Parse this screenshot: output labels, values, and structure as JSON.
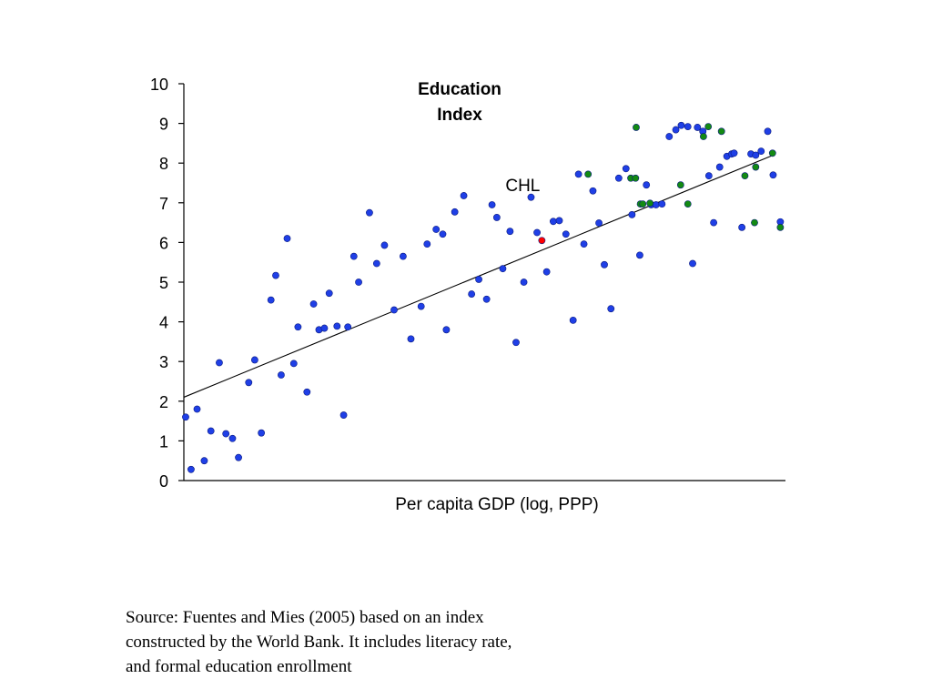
{
  "chart_data": {
    "type": "scatter",
    "title_lines": [
      "Education",
      "Index"
    ],
    "xlabel": "Per capita GDP (log, PPP)",
    "ylabel": "",
    "ylim": [
      0,
      10
    ],
    "yticks": [
      "0",
      "1",
      "2",
      "3",
      "4",
      "5",
      "6",
      "7",
      "8",
      "9",
      "10"
    ],
    "xticks": [],
    "xlim": [
      0,
      100
    ],
    "grid": false,
    "annotation": {
      "label": "CHL",
      "x": 59.6,
      "y": 6.05
    },
    "colors": {
      "default": "#1f3fe6",
      "highlight": "#ff0000",
      "group": "#138a13",
      "line": "#000000",
      "axis": "#000000"
    },
    "trend_line": {
      "x": [
        0,
        98.1
      ],
      "y": [
        2.1,
        8.2
      ]
    },
    "series": [
      {
        "key": "default",
        "x": [
          0.3,
          1.2,
          2.2,
          3.4,
          4.5,
          5.9,
          7.0,
          8.1,
          9.1,
          10.8,
          11.8,
          12.9,
          14.5,
          15.3,
          16.2,
          17.2,
          18.3,
          19.0,
          20.5,
          21.6,
          22.5,
          23.4,
          24.2,
          25.5,
          26.6,
          27.3,
          28.3,
          29.1,
          30.9,
          32.1,
          33.4,
          35.0,
          36.5,
          37.8,
          39.5,
          40.5,
          42.0,
          43.1,
          43.7,
          45.1,
          46.6,
          47.9,
          49.1,
          50.4,
          51.3,
          52.1,
          53.1,
          54.3,
          55.3,
          56.6,
          57.8,
          58.8,
          60.4,
          61.5,
          62.5,
          63.6,
          64.8,
          65.7,
          66.6,
          68.1,
          69.1,
          70.0,
          71.1,
          72.4,
          73.6,
          74.6,
          75.9,
          77.0,
          77.8,
          78.6,
          79.6,
          80.8,
          81.9,
          82.8,
          83.9,
          84.7,
          85.5,
          86.4,
          87.4,
          88.2,
          89.2,
          90.4,
          91.2,
          91.6,
          92.9,
          94.4,
          95.2,
          96.1,
          97.2,
          98.1,
          99.3
        ],
        "y": [
          1.6,
          0.28,
          1.8,
          0.5,
          1.25,
          2.97,
          1.18,
          1.06,
          0.58,
          2.47,
          3.04,
          1.2,
          4.55,
          5.17,
          2.66,
          6.1,
          2.95,
          3.87,
          2.23,
          4.45,
          3.8,
          3.84,
          4.72,
          3.89,
          1.65,
          3.87,
          5.65,
          5.0,
          6.75,
          5.47,
          5.93,
          4.3,
          5.65,
          3.57,
          4.39,
          5.96,
          6.33,
          6.21,
          3.8,
          6.77,
          7.18,
          4.7,
          5.07,
          4.57,
          6.95,
          6.63,
          5.34,
          6.28,
          3.48,
          5.0,
          7.14,
          6.25,
          5.26,
          6.53,
          6.55,
          6.21,
          4.04,
          7.72,
          5.96,
          7.3,
          6.49,
          5.44,
          4.33,
          7.62,
          7.86,
          6.7,
          5.68,
          7.45,
          6.95,
          6.95,
          6.97,
          8.67,
          8.84,
          8.95,
          8.92,
          5.47,
          8.9,
          8.8,
          7.68,
          6.5,
          7.9,
          8.17,
          8.23,
          8.25,
          6.38,
          8.23,
          8.2,
          8.3,
          8.8,
          7.7,
          6.52
        ],
        "count_check": 91
      },
      {
        "key": "group",
        "x": [
          67.3,
          74.4,
          75.3,
          82.7,
          83.9,
          86.5,
          87.3,
          89.5,
          93.4,
          95.0,
          95.2,
          98.0,
          99.3,
          75.2,
          76.0,
          76.4,
          77.6
        ],
        "y": [
          7.72,
          7.62,
          8.9,
          7.45,
          6.97,
          8.67,
          8.92,
          8.8,
          7.68,
          6.5,
          7.9,
          8.25,
          6.38,
          7.62,
          6.97,
          6.97,
          6.99
        ]
      },
      {
        "key": "highlight",
        "x": [
          59.6
        ],
        "y": [
          6.05
        ]
      }
    ]
  },
  "source_note": {
    "line1": "Source: Fuentes and Mies (2005) based on an index",
    "line2": "constructed by the World Bank. It includes literacy rate,",
    "line3": "and formal education enrollment"
  }
}
